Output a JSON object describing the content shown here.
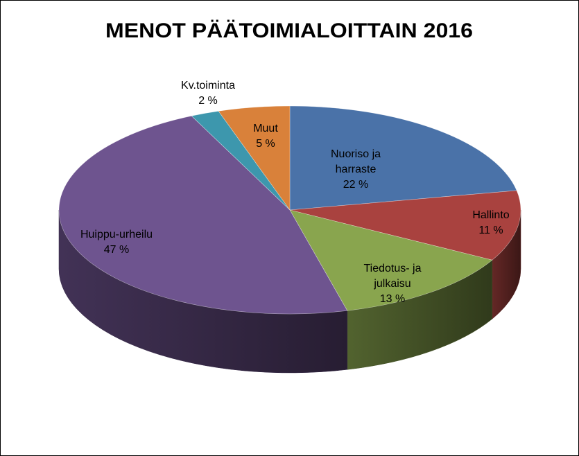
{
  "chart_data": {
    "type": "pie",
    "title": "MENOT PÄÄTOIMIALOITTAIN 2016",
    "categories": [
      "Nuoriso ja harraste",
      "Hallinto",
      "Tiedotus- ja julkaisu",
      "Huippu-urheilu",
      "Kv.toiminta",
      "Muut"
    ],
    "values": [
      22,
      11,
      13,
      47,
      2,
      5
    ],
    "value_labels": [
      "22 %",
      "11 %",
      "13 %",
      "47 %",
      "2 %",
      "5 %"
    ],
    "colors": [
      "#4a72a8",
      "#a9423f",
      "#89a54e",
      "#6e548f",
      "#3d97ad",
      "#d9813a"
    ]
  }
}
